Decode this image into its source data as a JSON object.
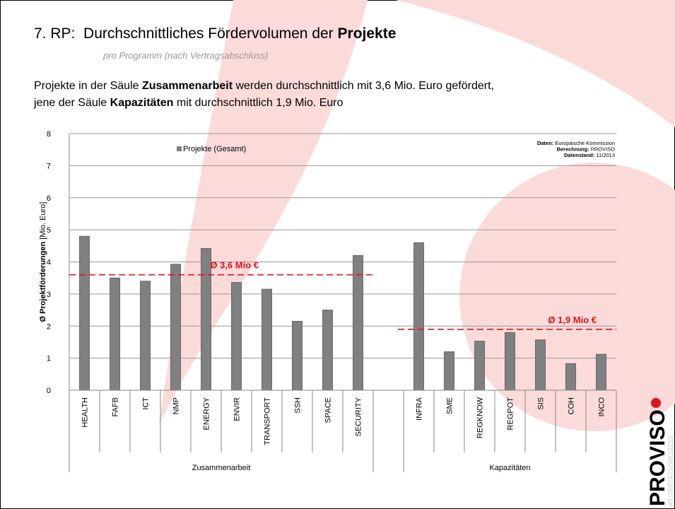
{
  "header": {
    "title": [
      {
        "text": "7. RP:  Durchschnittliches Fördervolumen der ",
        "bold": false
      },
      {
        "text": "Projekte",
        "bold": true
      }
    ],
    "subtitle": "pro Programm (nach Vertragsabschluss)",
    "intro": [
      [
        {
          "text": "Projekte in der Säule ",
          "bold": false
        },
        {
          "text": "Zusammenarbeit",
          "bold": true
        },
        {
          "text": " werden durchschnittlich mit 3,6 Mio. Euro gefördert,",
          "bold": false
        }
      ],
      [
        {
          "text": "jene der Säule ",
          "bold": false
        },
        {
          "text": "Kapazitäten",
          "bold": true
        },
        {
          "text": " mit durchschnittlich 1,9 Mio. Euro",
          "bold": false
        }
      ]
    ]
  },
  "chart_data": {
    "type": "bar",
    "y_label": [
      {
        "text": "Ø Projektförderungen",
        "bold": true
      },
      {
        "text": " [Mio. Euro]",
        "bold": false
      }
    ],
    "categories": [
      "HEALTH",
      "FAFB",
      "ICT",
      "NMP",
      "ENERGY",
      "ENVIR",
      "TRANSPORT",
      "SSH",
      "SPACE",
      "SECURITY",
      null,
      "INFRA",
      "SME",
      "REGKNOW",
      "REGPOT",
      "SIS",
      "COH",
      "INCO"
    ],
    "groups": [
      {
        "name": "Zusammenarbeit",
        "from": 0,
        "to": 9
      },
      {
        "name": "Kapazitäten",
        "from": 11,
        "to": 17
      }
    ],
    "series": [
      {
        "name": "Projekte (Gesamt)",
        "color": "#808080",
        "values": [
          4.8,
          3.5,
          3.4,
          3.93,
          4.42,
          3.36,
          3.15,
          2.15,
          2.5,
          4.2,
          null,
          4.6,
          1.2,
          1.53,
          1.8,
          1.57,
          0.83,
          1.12
        ]
      }
    ],
    "ylim": [
      0,
      8
    ],
    "yticks": [
      0,
      1,
      2,
      3,
      4,
      5,
      6,
      7,
      8
    ],
    "grid": true,
    "reference_lines": [
      {
        "value": 3.6,
        "label": "Ø 3,6 Mio €",
        "from": 0,
        "to": 9,
        "color": "#e0141e"
      },
      {
        "value": 1.9,
        "label": "Ø 1,9 Mio €",
        "from": 11,
        "to": 17,
        "color": "#e0141e"
      }
    ],
    "source": [
      [
        {
          "text": "Daten:",
          "bold": true
        },
        {
          "text": " Europäische Kommission",
          "bold": false
        }
      ],
      [
        {
          "text": "Berechnung:",
          "bold": true
        },
        {
          "text": " PROVISO",
          "bold": false
        }
      ],
      [
        {
          "text": "Datenstand:",
          "bold": true
        },
        {
          "text": " 11/2013",
          "bold": false
        }
      ]
    ]
  },
  "logo": {
    "name": "PROVISO",
    "code": "AT/7RP/A7100810213"
  }
}
